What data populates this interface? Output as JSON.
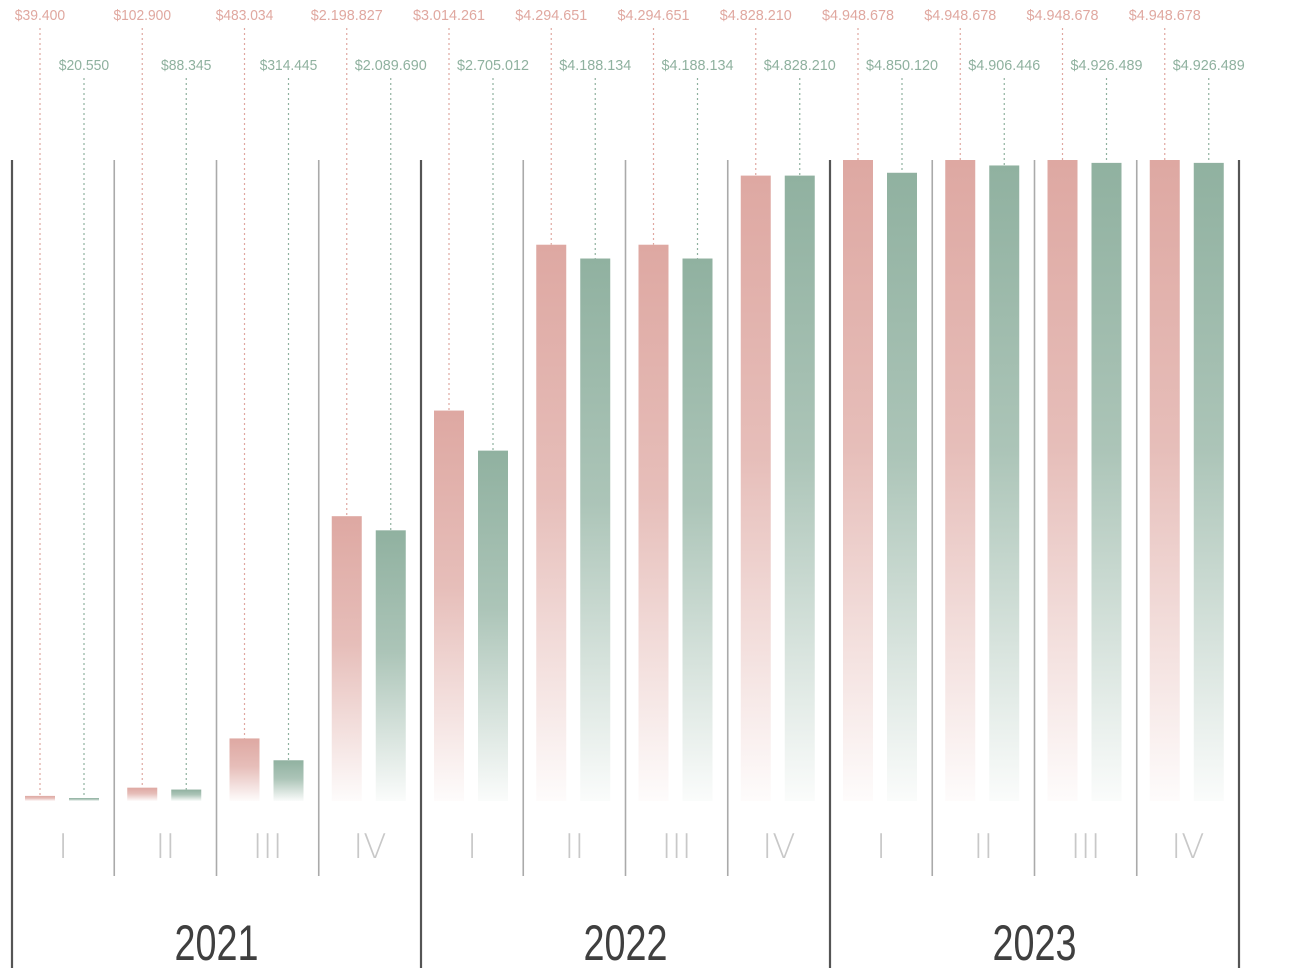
{
  "colors": {
    "series_a": "#dea8a2",
    "series_b": "#90b1a0",
    "label_a": "#e0a8a0",
    "label_b": "#8fb19f",
    "quarter_text": "#c8c8c8",
    "year_text": "#3f3f3f",
    "divider_year": "#555555",
    "divider_quarter": "#aaaaaa"
  },
  "chart_data": {
    "type": "bar",
    "years": [
      "2021",
      "2022",
      "2023"
    ],
    "quarter_labels": [
      "I",
      "II",
      "III",
      "IV"
    ],
    "categories": [
      "2021 I",
      "2021 II",
      "2021 III",
      "2021 IV",
      "2022 I",
      "2022 II",
      "2022 III",
      "2022 IV",
      "2023 I",
      "2023 II",
      "2023 III",
      "2023 IV"
    ],
    "series": [
      {
        "values": [
          39400,
          102900,
          483034,
          2198827,
          3014261,
          4294651,
          4294651,
          4828210,
          4948678,
          4948678,
          4948678,
          4948678
        ],
        "labels": [
          "$39.400",
          "$102.900",
          "$483.034",
          "$2.198.827",
          "$3.014.261",
          "$4.294.651",
          "$4.294.651",
          "$4.828.210",
          "$4.948.678",
          "$4.948.678",
          "$4.948.678",
          "$4.948.678"
        ]
      },
      {
        "values": [
          20550,
          88345,
          314445,
          2089690,
          2705012,
          4188134,
          4188134,
          4828210,
          4850120,
          4906446,
          4926489,
          4926489
        ],
        "labels": [
          "$20.550",
          "$88.345",
          "$314.445",
          "$2.089.690",
          "$2.705.012",
          "$4.188.134",
          "$4.188.134",
          "$4.828.210",
          "$4.850.120",
          "$4.906.446",
          "$4.926.489",
          "$4.926.489"
        ]
      }
    ],
    "ylim": [
      0,
      4948678
    ],
    "grid": false,
    "legend": "none"
  }
}
